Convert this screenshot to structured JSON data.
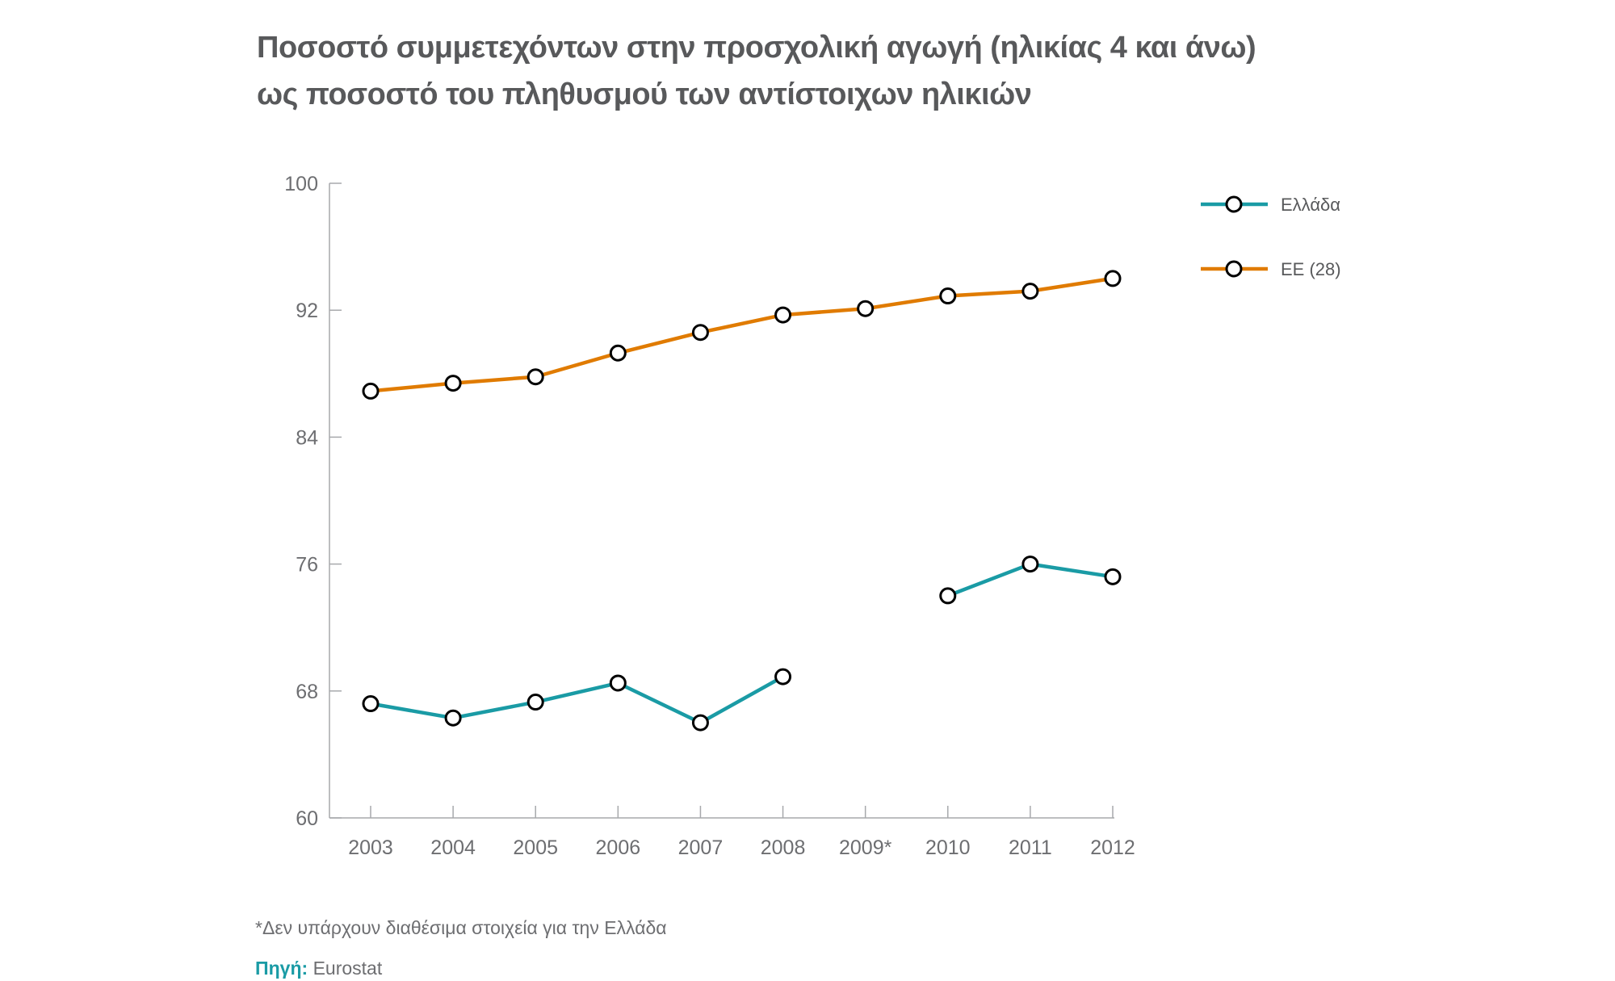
{
  "chart_data": {
    "type": "line",
    "title_line1": "Ποσοστό συμμετεχόντων στην προσχολική αγωγή (ηλικίας 4 και άνω)",
    "title_line2": "ως ποσοστό του πληθυσμού των αντίστοιχων ηλικιών",
    "categories": [
      "2003",
      "2004",
      "2005",
      "2006",
      "2007",
      "2008",
      "2009*",
      "2010",
      "2011",
      "2012"
    ],
    "yticks": [
      "60",
      "68",
      "76",
      "84",
      "92",
      "100"
    ],
    "ylim": [
      60,
      100
    ],
    "xlabel": "",
    "ylabel": "",
    "legend_position": "top-right",
    "series": [
      {
        "name": "Ελλάδα",
        "color": "#1a9ba5",
        "values": [
          67.2,
          66.3,
          67.3,
          68.5,
          66.0,
          68.9,
          null,
          74.0,
          76.0,
          75.2
        ]
      },
      {
        "name": "ΕΕ (28)",
        "color": "#e07b00",
        "values": [
          86.9,
          87.4,
          87.8,
          89.3,
          90.6,
          91.7,
          92.1,
          92.9,
          93.2,
          94.0
        ]
      }
    ]
  },
  "footnote": "*Δεν υπάρχουν διαθέσιμα στοιχεία για την Ελλάδα",
  "source_label": "Πηγή:",
  "source_value": "Eurostat"
}
